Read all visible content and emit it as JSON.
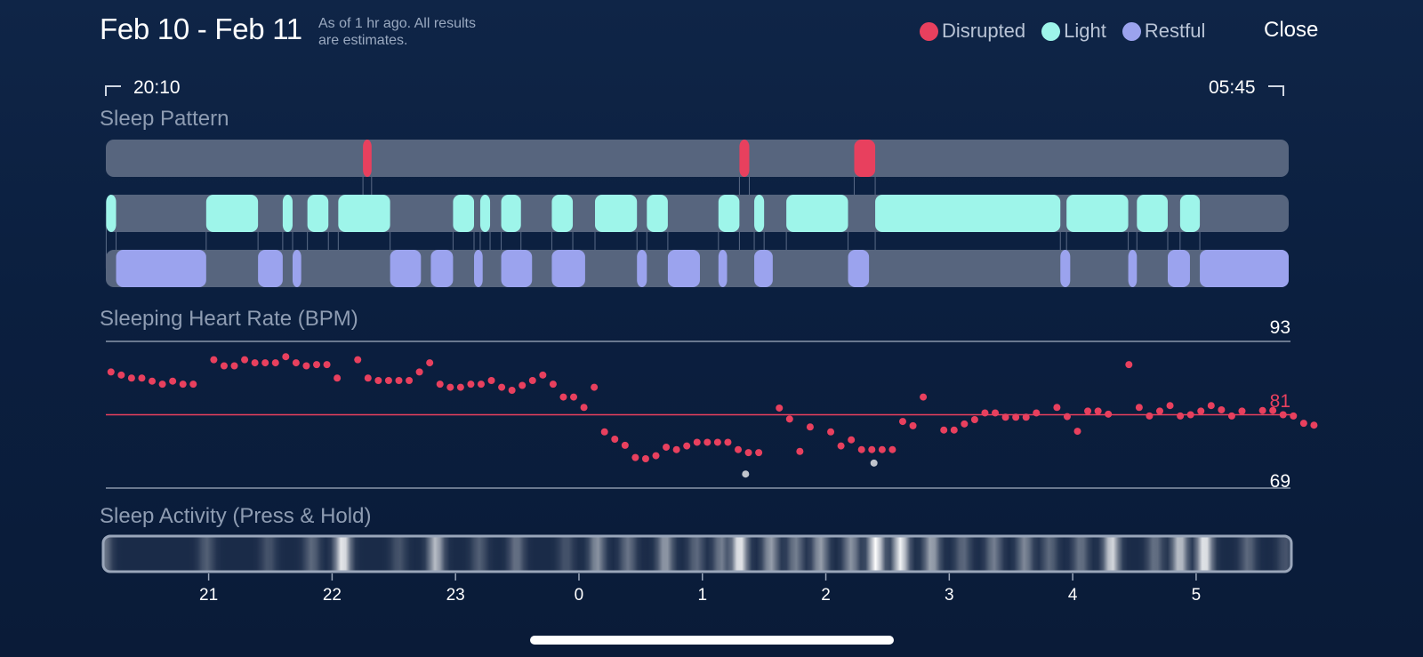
{
  "header": {
    "date_range": "Feb 10 - Feb 11",
    "note_line1": "As of 1 hr ago. All results",
    "note_line2": "are estimates.",
    "close_label": "Close"
  },
  "legend": [
    {
      "label": "Disrupted",
      "color": "#e8405e"
    },
    {
      "label": "Light",
      "color": "#9ef5ea"
    },
    {
      "label": "Restful",
      "color": "#9ba3ee"
    }
  ],
  "range": {
    "start": "20:10",
    "end": "05:45"
  },
  "sleep_pattern": {
    "title": "Sleep Pattern",
    "start_hour": 20.167,
    "end_hour": 29.75,
    "disrupted": [
      [
        22.25,
        22.32
      ],
      [
        25.3,
        25.38
      ],
      [
        26.23,
        26.4
      ]
    ],
    "light": [
      [
        20.17,
        20.25
      ],
      [
        20.98,
        21.4
      ],
      [
        21.6,
        21.68
      ],
      [
        21.8,
        21.97
      ],
      [
        22.05,
        22.47
      ],
      [
        22.98,
        23.15
      ],
      [
        23.2,
        23.28
      ],
      [
        23.37,
        23.53
      ],
      [
        23.78,
        23.95
      ],
      [
        24.13,
        24.47
      ],
      [
        24.55,
        24.72
      ],
      [
        25.13,
        25.3
      ],
      [
        25.42,
        25.5
      ],
      [
        25.68,
        26.18
      ],
      [
        26.4,
        27.9
      ],
      [
        27.95,
        28.45
      ],
      [
        28.52,
        28.77
      ],
      [
        28.87,
        29.03
      ]
    ],
    "restful": [
      [
        20.25,
        20.98
      ],
      [
        21.4,
        21.6
      ],
      [
        21.68,
        21.75
      ],
      [
        22.47,
        22.72
      ],
      [
        22.8,
        22.98
      ],
      [
        23.15,
        23.22
      ],
      [
        23.37,
        23.62
      ],
      [
        23.78,
        24.05
      ],
      [
        24.47,
        24.55
      ],
      [
        24.72,
        24.98
      ],
      [
        25.13,
        25.2
      ],
      [
        25.42,
        25.57
      ],
      [
        26.18,
        26.35
      ],
      [
        27.9,
        27.98
      ],
      [
        28.45,
        28.52
      ],
      [
        28.77,
        28.95
      ],
      [
        29.03,
        29.75
      ]
    ]
  },
  "heart_rate": {
    "title": "Sleeping Heart Rate (BPM)",
    "max_label": "93",
    "avg_label": "81",
    "min_label": "69",
    "ymax": 93,
    "ymin": 69,
    "avg": 81,
    "x_start": 20.167,
    "step_hours": 0.0833,
    "values": [
      88,
      87.5,
      87,
      87,
      86.5,
      86,
      86.5,
      86,
      86,
      null,
      90,
      89,
      89,
      90,
      89.5,
      89.5,
      89.5,
      90.5,
      89.5,
      89,
      89.2,
      89.2,
      87,
      null,
      90,
      87,
      86.6,
      86.6,
      86.6,
      86.6,
      88,
      89.5,
      86,
      85.5,
      85.5,
      86,
      86,
      86.6,
      85.5,
      85,
      85.8,
      86.6,
      87.5,
      86,
      83.9,
      83.9,
      82.2,
      85.5,
      78.2,
      77,
      76,
      74,
      73.8,
      74.3,
      75.7,
      75.3,
      75.9,
      76.5,
      76.5,
      76.5,
      76.5,
      75.3,
      74.8,
      74.8,
      null,
      82.1,
      80.3,
      75,
      79,
      null,
      78.2,
      75.9,
      76.9,
      75.3,
      75.3,
      75.3,
      75.3,
      79.9,
      79.2,
      83.9,
      null,
      78.5,
      78.5,
      79.5,
      80.2,
      81.3,
      81.3,
      80.6,
      80.6,
      80.6,
      81.3,
      null,
      82.2,
      80.7,
      78.3,
      81.6,
      81.6,
      81.1,
      null,
      89.2,
      82.2,
      80.8,
      81.6,
      82.5,
      80.8,
      81.0,
      81.6,
      82.5,
      81.8,
      80.8,
      81.6,
      null,
      81.7,
      81.7,
      81.0,
      80.8,
      79.6,
      79.3
    ],
    "gray_points": [
      [
        25.35,
        71.3
      ],
      [
        26.39,
        73.1
      ]
    ],
    "colors": {
      "dot": "#e8405e",
      "avg_line": "#e8405e",
      "gray_dot": "#c0c4cc"
    }
  },
  "sleep_activity": {
    "title": "Sleep Activity (Press & Hold)",
    "peaks": [
      [
        20.17,
        0.4
      ],
      [
        21.0,
        0.25
      ],
      [
        21.5,
        0.2
      ],
      [
        21.85,
        0.3
      ],
      [
        22.1,
        0.95
      ],
      [
        22.55,
        0.2
      ],
      [
        22.85,
        0.7
      ],
      [
        23.2,
        0.25
      ],
      [
        23.5,
        0.35
      ],
      [
        23.9,
        0.2
      ],
      [
        24.15,
        0.5
      ],
      [
        24.4,
        0.35
      ],
      [
        24.7,
        0.55
      ],
      [
        24.95,
        0.3
      ],
      [
        25.15,
        0.4
      ],
      [
        25.3,
        0.95
      ],
      [
        25.55,
        0.55
      ],
      [
        25.75,
        0.4
      ],
      [
        25.95,
        0.55
      ],
      [
        26.2,
        0.5
      ],
      [
        26.4,
        1.0
      ],
      [
        26.6,
        0.95
      ],
      [
        26.85,
        0.6
      ],
      [
        27.1,
        0.3
      ],
      [
        27.35,
        0.4
      ],
      [
        27.6,
        0.45
      ],
      [
        27.8,
        0.3
      ],
      [
        28.05,
        0.35
      ],
      [
        28.3,
        0.85
      ],
      [
        28.65,
        0.35
      ],
      [
        28.85,
        0.75
      ],
      [
        29.05,
        0.95
      ],
      [
        29.4,
        0.3
      ],
      [
        29.7,
        0.2
      ]
    ]
  },
  "x_axis": {
    "ticks": [
      "21",
      "22",
      "23",
      "0",
      "1",
      "2",
      "3",
      "4",
      "5"
    ],
    "tick_hours": [
      21,
      22,
      23,
      24,
      25,
      26,
      27,
      28,
      29
    ]
  }
}
